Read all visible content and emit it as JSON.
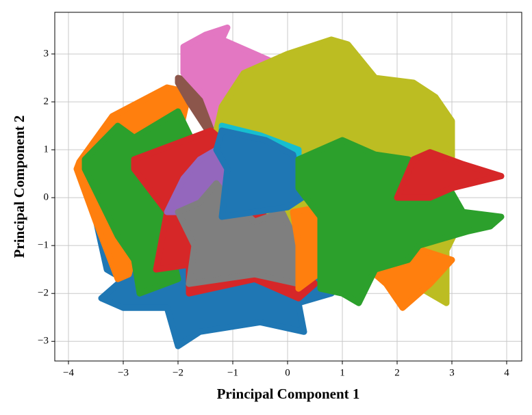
{
  "chart_data": {
    "type": "scatter",
    "x_label": "Principal Component 1",
    "y_label": "Principal Component 2",
    "xlim": [
      -4.25,
      4.275
    ],
    "ylim": [
      -3.41,
      3.87
    ],
    "xticks": [
      {
        "value": -4,
        "label": "−4"
      },
      {
        "value": -3,
        "label": "−3"
      },
      {
        "value": -2,
        "label": "−2"
      },
      {
        "value": -1,
        "label": "−1"
      },
      0,
      1,
      2,
      3,
      4
    ],
    "yticks": [
      {
        "value": -3,
        "label": "−3"
      },
      {
        "value": -2,
        "label": "−2"
      },
      {
        "value": -1,
        "label": "−1"
      },
      0,
      1,
      2,
      3
    ],
    "grid": true,
    "series": [
      {
        "color": "#1f77b4",
        "x": [
          -3.6,
          -3.3,
          -3.0,
          -3.4,
          -3.0,
          -2.2,
          -2.0,
          -1.6,
          -0.5,
          0.3,
          0.2,
          0.8,
          1.0,
          0.3,
          -1.5,
          -2.7,
          -3.3
        ],
        "y": [
          0.05,
          -1.5,
          -1.7,
          -2.1,
          -2.3,
          -2.3,
          -3.1,
          -2.8,
          -2.6,
          -2.8,
          -2.2,
          -2.0,
          -1.8,
          -1.5,
          -1.6,
          -1.0,
          0.0
        ]
      },
      {
        "color": "#ff7f0e",
        "x": [
          -3.8,
          -3.2,
          -2.2,
          -1.8,
          -2.0,
          -2.4,
          -2.9,
          -3.1,
          -3.5,
          -3.85
        ],
        "y": [
          0.75,
          1.7,
          2.3,
          2.2,
          1.2,
          0.5,
          -1.6,
          -1.7,
          -0.5,
          0.6
        ]
      },
      {
        "color": "#8c564b",
        "x": [
          -2.0,
          -1.6,
          -1.3,
          -1.0,
          -1.1,
          -1.4,
          -1.8,
          -2.0
        ],
        "y": [
          2.5,
          2.4,
          3.1,
          3.1,
          1.5,
          1.3,
          2.0,
          2.4
        ]
      },
      {
        "color": "#e377c2",
        "x": [
          -1.9,
          -1.9,
          -1.5,
          -1.1,
          -1.2,
          -0.8,
          -0.2,
          -0.3,
          -1.2,
          -1.3,
          -1.1,
          -1.5,
          -1.9
        ],
        "y": [
          2.6,
          3.15,
          3.4,
          3.55,
          3.3,
          3.1,
          2.8,
          2.3,
          1.9,
          1.3,
          0.9,
          2.1,
          2.6
        ]
      },
      {
        "color": "#bcbd22",
        "x": [
          -1.2,
          -0.8,
          0,
          0.8,
          1.1,
          1.6,
          2.3,
          2.7,
          3.0,
          3.0,
          2.6,
          3.2,
          2.9,
          2.9,
          2.3,
          2.4,
          0.5,
          -0.4,
          -1.3,
          -1.0,
          -1.3
        ],
        "y": [
          1.9,
          2.6,
          3.0,
          3.3,
          3.2,
          2.5,
          2.4,
          2.1,
          1.6,
          0.8,
          0.4,
          -0.4,
          -1.1,
          -2.2,
          -1.8,
          -0.6,
          -0.5,
          -0.6,
          -0.2,
          0.8,
          1.4
        ]
      },
      {
        "color": "#2ca02c",
        "x": [
          -3.7,
          -3.1,
          -2.8,
          -2.0,
          -1.7,
          -2.0,
          -2.2,
          -2.0,
          -2.7,
          -2.8,
          -3.1,
          -3.7
        ],
        "y": [
          0.8,
          1.5,
          1.25,
          1.8,
          1.1,
          0.4,
          -0.8,
          -1.7,
          -2.0,
          -1.3,
          -0.8,
          0.6
        ]
      },
      {
        "color": "#d62728",
        "x": [
          -2.8,
          -1.4,
          -0.8,
          -0.3,
          0.5,
          0.2,
          -0.6,
          -1.8,
          -1.8,
          -2.4,
          -2.2,
          -2.8
        ],
        "y": [
          0.8,
          1.4,
          0.8,
          -0.8,
          -1.8,
          -2.1,
          -1.7,
          -2.0,
          -1.4,
          -1.5,
          -0.3,
          0.6
        ]
      },
      {
        "color": "#9467bd",
        "x": [
          -2.2,
          -1.9,
          -1.6,
          -1.3,
          -1.0,
          -1.5,
          -2.0
        ],
        "y": [
          -0.3,
          0.4,
          0.8,
          1.0,
          0.4,
          -0.2,
          -0.3
        ]
      },
      {
        "color": "#7f7f7f",
        "x": [
          -2.0,
          -1.6,
          -1.3,
          -1.1,
          -0.6,
          -0.1,
          0.2,
          0.2,
          -0.6,
          -1.8,
          -1.7,
          -2.0
        ],
        "y": [
          -0.3,
          -0.1,
          0.3,
          0.0,
          -0.5,
          -0.3,
          -1.0,
          -1.8,
          -1.6,
          -1.8,
          -1.0,
          -0.3
        ]
      },
      {
        "color": "#17becf",
        "x": [
          -1.2,
          -0.5,
          0.2,
          0.2,
          -0.6,
          -1.2
        ],
        "y": [
          1.5,
          1.3,
          1.0,
          0.6,
          0.9,
          1.2
        ]
      },
      {
        "color": "#1f77b4",
        "x": [
          -1.2,
          -0.4,
          0.1,
          0.2,
          0.4,
          0.0,
          -1.2,
          -1.1,
          -1.3
        ],
        "y": [
          1.4,
          1.2,
          0.9,
          0.4,
          0.1,
          -0.2,
          -0.4,
          0.6,
          1.0
        ]
      },
      {
        "color": "#ff7f0e",
        "x": [
          0.1,
          0.6,
          1.0,
          1.8,
          2.1,
          2.6,
          3.0,
          2.2,
          1.5,
          0.9,
          0.2,
          0.2
        ],
        "y": [
          -0.3,
          -0.2,
          -1.0,
          -1.8,
          -2.3,
          -1.8,
          -1.3,
          -1.0,
          -1.6,
          -1.3,
          -1.9,
          -1.0
        ]
      },
      {
        "color": "#2ca02c",
        "x": [
          0.2,
          1.0,
          1.6,
          2.2,
          2.8,
          3.2,
          3.9,
          3.7,
          3.3,
          2.4,
          2.2,
          1.6,
          1.3,
          1.0,
          0.6,
          0.6,
          0.2
        ],
        "y": [
          0.8,
          1.2,
          0.9,
          0.8,
          0.5,
          -0.3,
          -0.4,
          -0.6,
          -0.7,
          -1.0,
          -1.3,
          -1.5,
          -2.2,
          -2.0,
          -1.9,
          -0.4,
          0.2
        ]
      },
      {
        "color": "#d62728",
        "x": [
          2.0,
          2.3,
          2.6,
          3.2,
          3.9,
          3.0,
          2.6
        ],
        "y": [
          0.0,
          0.8,
          0.95,
          0.7,
          0.45,
          0.2,
          0.0
        ]
      }
    ]
  }
}
